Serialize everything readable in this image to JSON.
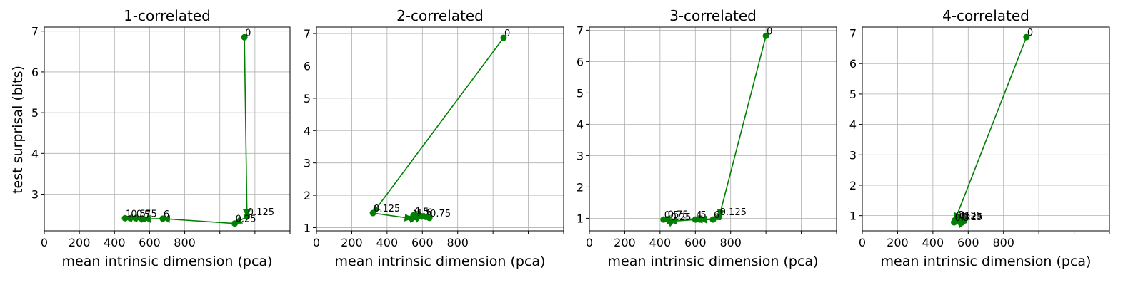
{
  "figure": {
    "ylabel": "test surprisal (bits)"
  },
  "chart_data": [
    {
      "type": "line",
      "title": "1-correlated",
      "xlabel": "mean intrinsic dimension (pca)",
      "ylabel": "test surprisal (bits)",
      "xlim": [
        0,
        1400
      ],
      "ylim": [
        2.1,
        7.1
      ],
      "xticks": [
        0,
        200,
        400,
        600,
        800,
        1000,
        1200,
        1400
      ],
      "xtick_labels": [
        "0",
        "200",
        "400",
        "600",
        "800",
        "",
        "",
        ""
      ],
      "yticks": [
        3,
        4,
        5,
        6,
        7
      ],
      "grid": true,
      "color": "#008000",
      "points": [
        {
          "label": "0",
          "x": 1140,
          "y": 6.85
        },
        {
          "label": "0.125",
          "x": 1155,
          "y": 2.45
        },
        {
          "label": "0.25",
          "x": 1085,
          "y": 2.28
        },
        {
          "label": "6",
          "x": 675,
          "y": 2.4
        },
        {
          "label": "5",
          "x": 565,
          "y": 2.39
        },
        {
          "label": "0.75",
          "x": 520,
          "y": 2.41
        },
        {
          "label": "0.5",
          "x": 490,
          "y": 2.41
        },
        {
          "label": "1",
          "x": 460,
          "y": 2.41
        }
      ]
    },
    {
      "type": "line",
      "title": "2-correlated",
      "xlabel": "mean intrinsic dimension (pca)",
      "ylabel": "",
      "xlim": [
        0,
        1400
      ],
      "ylim": [
        0.9,
        7.2
      ],
      "xticks": [
        0,
        200,
        400,
        600,
        800,
        1000,
        1200,
        1400
      ],
      "xtick_labels": [
        "0",
        "200",
        "400",
        "600",
        "800",
        "",
        "",
        ""
      ],
      "yticks": [
        1,
        2,
        3,
        4,
        5,
        6,
        7
      ],
      "grid": true,
      "color": "#008000",
      "points": [
        {
          "label": "0",
          "x": 1060,
          "y": 6.87
        },
        {
          "label": "0.125",
          "x": 320,
          "y": 1.45
        },
        {
          "label": "1",
          "x": 540,
          "y": 1.28
        },
        {
          "label": "1.5",
          "x": 565,
          "y": 1.32
        },
        {
          "label": "4",
          "x": 550,
          "y": 1.38
        },
        {
          "label": "5",
          "x": 600,
          "y": 1.35
        },
        {
          "label": "6",
          "x": 620,
          "y": 1.33
        },
        {
          "label": "0.75",
          "x": 640,
          "y": 1.3
        }
      ]
    },
    {
      "type": "line",
      "title": "3-correlated",
      "xlabel": "mean intrinsic dimension (pca)",
      "ylabel": "",
      "xlim": [
        0,
        1400
      ],
      "ylim": [
        0.6,
        7.1
      ],
      "xticks": [
        0,
        200,
        400,
        600,
        800,
        1000,
        1200,
        1400
      ],
      "xtick_labels": [
        "0",
        "200",
        "400",
        "600",
        "800",
        "",
        "",
        ""
      ],
      "yticks": [
        1,
        2,
        3,
        4,
        5,
        6,
        7
      ],
      "grid": true,
      "color": "#008000",
      "points": [
        {
          "label": "0",
          "x": 1000,
          "y": 6.82
        },
        {
          "label": "0.125",
          "x": 735,
          "y": 1.05
        },
        {
          "label": "6",
          "x": 700,
          "y": 0.96
        },
        {
          "label": "5",
          "x": 625,
          "y": 0.96
        },
        {
          "label": "4",
          "x": 600,
          "y": 0.96
        },
        {
          "label": "0.25",
          "x": 455,
          "y": 0.9
        },
        {
          "label": "0.75",
          "x": 440,
          "y": 0.97
        },
        {
          "label": "0.5",
          "x": 420,
          "y": 0.96
        }
      ]
    },
    {
      "type": "line",
      "title": "4-correlated",
      "xlabel": "mean intrinsic dimension (pca)",
      "ylabel": "",
      "xlim": [
        0,
        1400
      ],
      "ylim": [
        0.5,
        7.2
      ],
      "xticks": [
        0,
        200,
        400,
        600,
        800,
        1000,
        1200,
        1400
      ],
      "xtick_labels": [
        "0",
        "200",
        "400",
        "600",
        "800",
        "",
        "",
        ""
      ],
      "yticks": [
        1,
        2,
        3,
        4,
        5,
        6,
        7
      ],
      "grid": true,
      "color": "#008000",
      "points": [
        {
          "label": "0",
          "x": 930,
          "y": 6.87
        },
        {
          "label": "0.125",
          "x": 525,
          "y": 0.85
        },
        {
          "label": "0.25",
          "x": 560,
          "y": 0.8
        },
        {
          "label": "5",
          "x": 575,
          "y": 0.85
        },
        {
          "label": "1",
          "x": 550,
          "y": 0.82
        },
        {
          "label": "2",
          "x": 545,
          "y": 0.86
        },
        {
          "label": "3",
          "x": 540,
          "y": 0.87
        },
        {
          "label": "0.5",
          "x": 520,
          "y": 0.78
        }
      ]
    }
  ]
}
